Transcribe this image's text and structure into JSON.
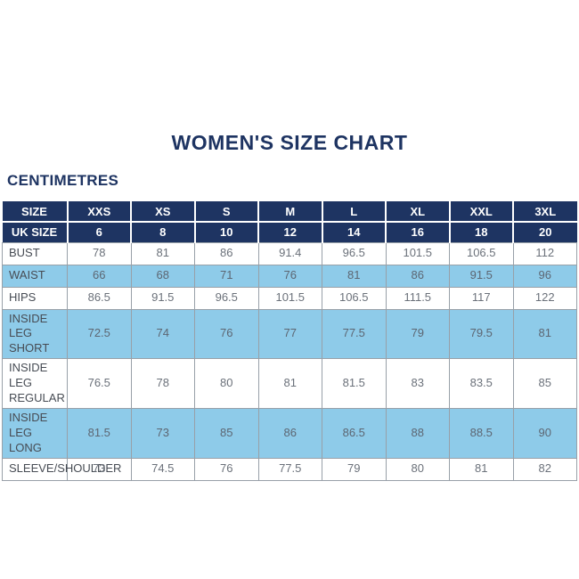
{
  "page": {
    "title": "WOMEN'S SIZE CHART",
    "unit_label": "CENTIMETRES"
  },
  "colors": {
    "navy": "#1e3462",
    "light_blue": "#8ecbe9",
    "border_gray": "#98a0a8",
    "value_text": "#6b717a",
    "label_text": "#474c54",
    "background": "#ffffff"
  },
  "chart_data": {
    "type": "table",
    "title": "WOMEN'S SIZE CHART",
    "unit": "CENTIMETRES",
    "header_row": [
      "SIZE",
      "XXS",
      "XS",
      "S",
      "M",
      "L",
      "XL",
      "XXL",
      "3XL"
    ],
    "uk_size_row": [
      "UK SIZE",
      "6",
      "8",
      "10",
      "12",
      "14",
      "16",
      "18",
      "20"
    ],
    "rows": [
      {
        "label": "BUST",
        "values": [
          "78",
          "81",
          "86",
          "91.4",
          "96.5",
          "101.5",
          "106.5",
          "112"
        ],
        "highlight": false
      },
      {
        "label": "WAIST",
        "values": [
          "66",
          "68",
          "71",
          "76",
          "81",
          "86",
          "91.5",
          "96"
        ],
        "highlight": true
      },
      {
        "label": "HIPS",
        "values": [
          "86.5",
          "91.5",
          "96.5",
          "101.5",
          "106.5",
          "111.5",
          "117",
          "122"
        ],
        "highlight": false
      },
      {
        "label": "INSIDE LEG SHORT",
        "values": [
          "72.5",
          "74",
          "76",
          "77",
          "77.5",
          "79",
          "79.5",
          "81"
        ],
        "highlight": true
      },
      {
        "label": "INSIDE LEG REGULAR",
        "values": [
          "76.5",
          "78",
          "80",
          "81",
          "81.5",
          "83",
          "83.5",
          "85"
        ],
        "highlight": false
      },
      {
        "label": "INSIDE LEG LONG",
        "values": [
          "81.5",
          "73",
          "85",
          "86",
          "86.5",
          "88",
          "88.5",
          "90"
        ],
        "highlight": true
      },
      {
        "label": "SLEEVE/SHOULDER",
        "values": [
          "73",
          "74.5",
          "76",
          "77.5",
          "79",
          "80",
          "81",
          "82"
        ],
        "highlight": false
      }
    ]
  }
}
